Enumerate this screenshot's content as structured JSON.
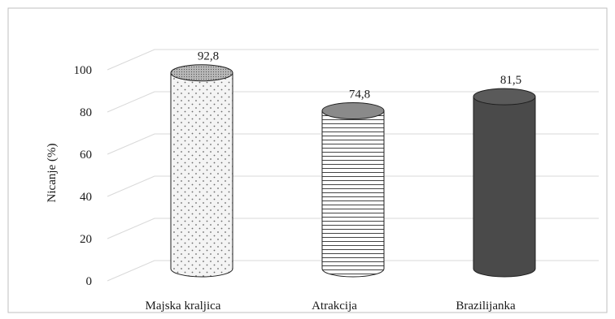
{
  "chart_data": {
    "type": "bar",
    "style": "3d-cylinder",
    "categories": [
      "Majska kraljica",
      "Atrakcija",
      "Brazilijanka"
    ],
    "values": [
      92.8,
      74.8,
      81.5
    ],
    "value_labels": [
      "92,8",
      "74,8",
      "81,5"
    ],
    "ylabel": "Nicanje (%)",
    "ylim": [
      0,
      100
    ],
    "yticks": [
      0,
      20,
      40,
      60,
      80,
      100
    ],
    "grid": true,
    "legend": "none",
    "fills": [
      "dotted",
      "horizontal-lines",
      "solid-dark"
    ],
    "colors": {
      "dotted_base": "#f4f4f4",
      "dot": "#6a6a6a",
      "lines_base": "#ffffff",
      "line": "#444444",
      "solid": "#4a4a4a",
      "outline": "#1f1f1f",
      "grid": "#d9d9d9"
    }
  }
}
